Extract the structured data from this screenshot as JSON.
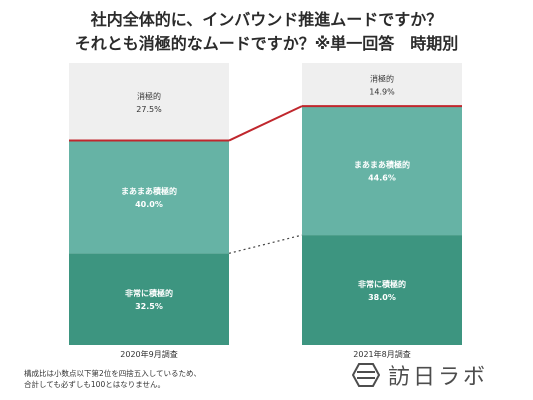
{
  "title_line1": "社内全体的に、インバウンド推進ムードですか？",
  "title_line2": "それとも消極的なムードですか？※単一回答　時期別",
  "chart_data": {
    "type": "bar",
    "stacked": true,
    "categories": [
      "2020年9月調査",
      "2021年8月調査"
    ],
    "ylim": [
      0,
      100
    ],
    "series": [
      {
        "name": "非常に積極的",
        "values": [
          32.5,
          38.0
        ],
        "labels": [
          "32.5%",
          "38.0%"
        ],
        "color": "#3d9580"
      },
      {
        "name": "まあまあ積極的",
        "values": [
          40.0,
          44.6
        ],
        "labels": [
          "40.0%",
          "44.6%"
        ],
        "color": "#66b3a5"
      },
      {
        "name": "消極的",
        "values": [
          27.5,
          14.9
        ],
        "labels": [
          "27.5%",
          "14.9%"
        ],
        "color": "#efefef"
      }
    ],
    "connector_colors": {
      "boundary_positive": "#c0272d",
      "boundary_strong": "#444444"
    }
  },
  "footnote_line1": "構成比は小数点以下第2位を四捨五入しているため、",
  "footnote_line2": "合計しても必ずしも100とはなりません。",
  "logo_text": "訪日ラボ",
  "logo_icon": "hexagon-logo-icon"
}
